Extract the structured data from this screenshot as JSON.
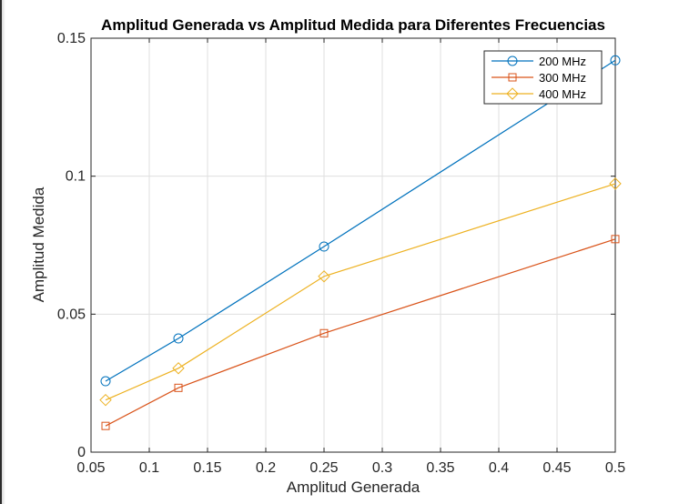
{
  "chart_data": {
    "type": "line",
    "title": "Amplitud Generada vs Amplitud Medida para Diferentes Frecuencias",
    "xlabel": "Amplitud Generada",
    "ylabel": "Amplitud Medida",
    "xlim": [
      0.05,
      0.5
    ],
    "ylim": [
      0,
      0.15
    ],
    "xticks": [
      0.05,
      0.1,
      0.15,
      0.2,
      0.25,
      0.3,
      0.35,
      0.4,
      0.45,
      0.5
    ],
    "xticklabels": [
      "0.05",
      "0.1",
      "0.15",
      "0.2",
      "0.25",
      "0.3",
      "0.35",
      "0.4",
      "0.45",
      "0.5"
    ],
    "yticks": [
      0,
      0.05,
      0.1,
      0.15
    ],
    "yticklabels": [
      "0",
      "0.05",
      "0.1",
      "0.15"
    ],
    "grid": true,
    "legend_position": "top-right",
    "x": [
      0.0625,
      0.125,
      0.25,
      0.5
    ],
    "series": [
      {
        "name": "200 MHz",
        "marker": "circle",
        "color": "#0072BD",
        "values": [
          0.0257,
          0.0412,
          0.0745,
          0.142
        ]
      },
      {
        "name": "300 MHz",
        "marker": "square",
        "color": "#D95319",
        "values": [
          0.0095,
          0.0233,
          0.0431,
          0.0772
        ]
      },
      {
        "name": "400 MHz",
        "marker": "diamond",
        "color": "#EDB120",
        "values": [
          0.0189,
          0.0304,
          0.0637,
          0.0973
        ]
      }
    ]
  }
}
